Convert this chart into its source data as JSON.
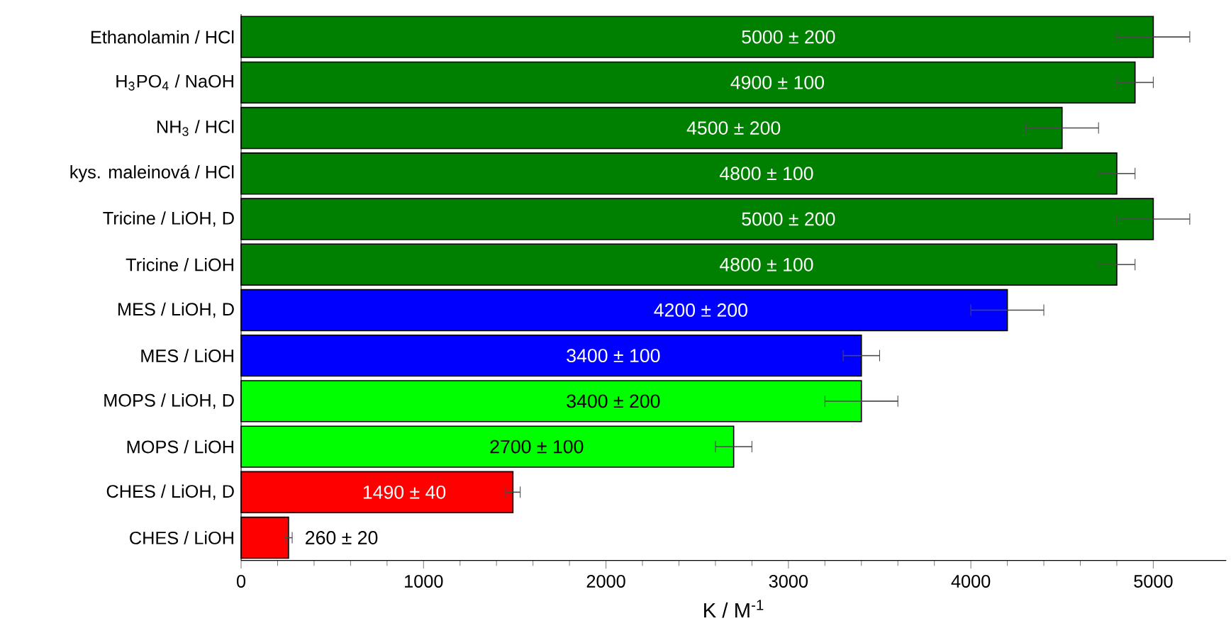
{
  "chart_data": {
    "type": "bar",
    "orientation": "horizontal",
    "xlabel": "K / M$^{-1}$",
    "categories": [
      "Ethanolamin / HCl",
      "H$_{3}$PO$_{4}$ / NaOH",
      "NH$_{3}$ / HCl",
      "kys. maleinová / HCl",
      "Tricine / LiOH, D",
      "Tricine / LiOH",
      "MES / LiOH, D",
      "MES / LiOH",
      "MOPS / LiOH, D",
      "MOPS / LiOH",
      "CHES / LiOH, D",
      "CHES / LiOH"
    ],
    "values": [
      5000,
      4900,
      4500,
      4800,
      5000,
      4800,
      4200,
      3400,
      3400,
      2700,
      1490,
      260
    ],
    "errors": [
      200,
      100,
      200,
      100,
      200,
      100,
      200,
      100,
      200,
      100,
      40,
      20
    ],
    "value_labels": [
      "5000 ± 200",
      "4900 ± 100",
      "4500 ± 200",
      "4800 ± 100",
      "5000 ± 200",
      "4800 ± 100",
      "4200 ± 200",
      "3400 ± 100",
      "3400 ± 200",
      "2700 ± 100",
      "1490 ± 40",
      "260 ± 20"
    ],
    "colors": [
      "#008000",
      "#008000",
      "#008000",
      "#008000",
      "#008000",
      "#008000",
      "#0000ff",
      "#0000ff",
      "#00ff00",
      "#00ff00",
      "#ff0000",
      "#ff0000"
    ],
    "xlim": [
      0,
      5400
    ],
    "xticks": [
      0,
      1000,
      2000,
      3000,
      4000,
      5000
    ]
  }
}
